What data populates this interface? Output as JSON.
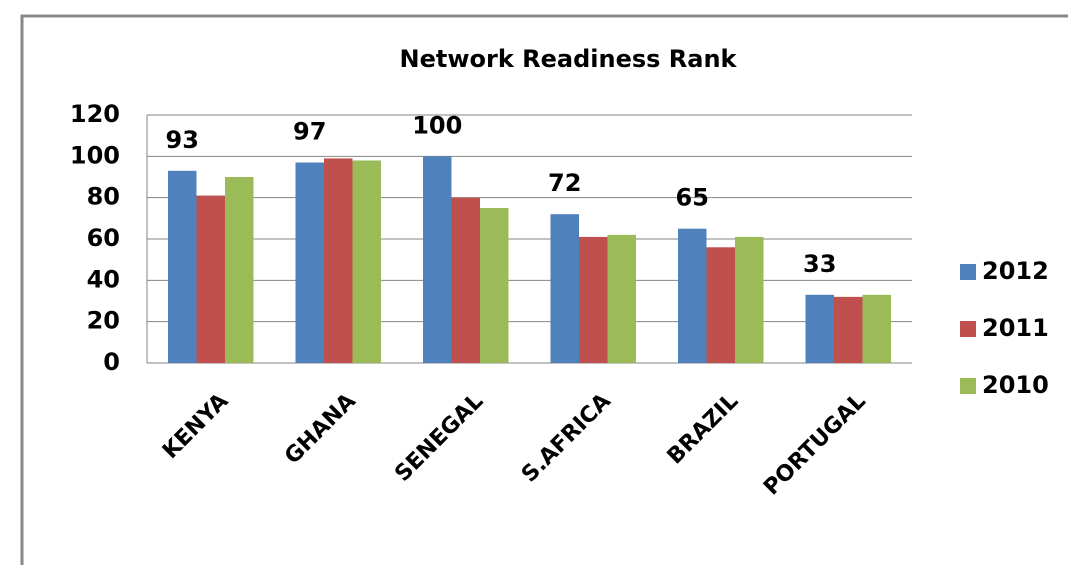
{
  "chart_data": {
    "type": "bar",
    "title": "Network Readiness Rank",
    "categories": [
      "KENYA",
      "GHANA",
      "SENEGAL",
      "S.AFRICA",
      "BRAZIL",
      "PORTUGAL"
    ],
    "series": [
      {
        "name": "2012",
        "color": "#4f81bd",
        "values": [
          93,
          97,
          100,
          72,
          65,
          33
        ],
        "data_labels": true
      },
      {
        "name": "2011",
        "color": "#c0504d",
        "values": [
          81,
          99,
          80,
          61,
          56,
          32
        ]
      },
      {
        "name": "2010",
        "color": "#9bbb59",
        "values": [
          90,
          98,
          75,
          62,
          61,
          33
        ]
      }
    ],
    "ylim": [
      0,
      120
    ],
    "yticks": [
      0,
      20,
      40,
      60,
      80,
      100,
      120
    ],
    "grid": true,
    "legend": "right"
  }
}
